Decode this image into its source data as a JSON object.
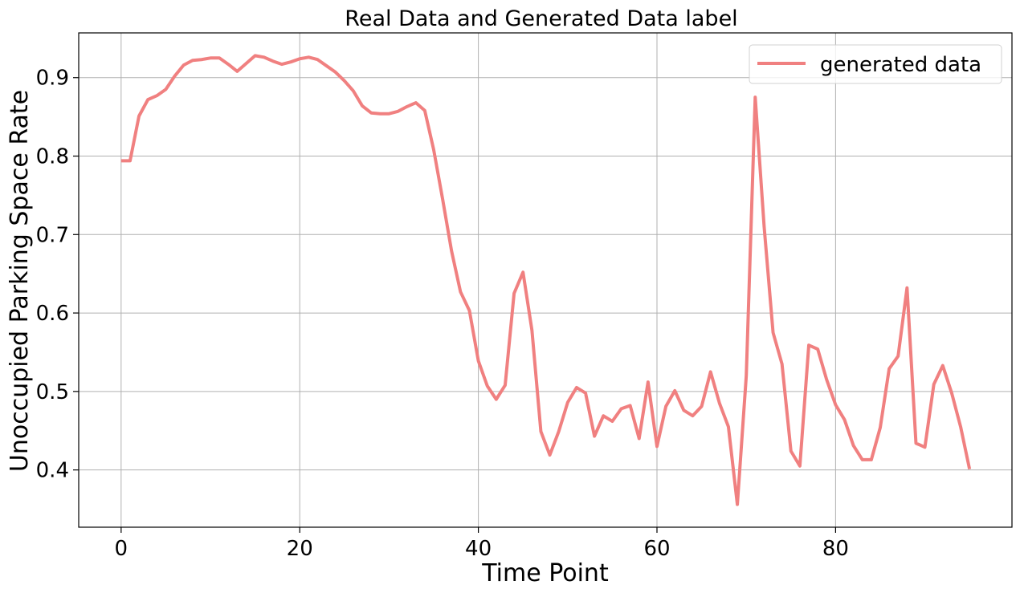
{
  "chart_data": {
    "type": "line",
    "title": "Real Data and Generated Data label",
    "xlabel": "Time Point",
    "ylabel": "Unoccupied Parking Space Rate",
    "xlim": [
      -4.75,
      99.75
    ],
    "ylim": [
      0.327,
      0.957
    ],
    "xticks": [
      0,
      20,
      40,
      60,
      80
    ],
    "yticks": [
      0.4,
      0.5,
      0.6,
      0.7,
      0.8,
      0.9
    ],
    "xtick_labels": [
      "0",
      "20",
      "40",
      "60",
      "80"
    ],
    "ytick_labels": [
      "0.4",
      "0.5",
      "0.6",
      "0.7",
      "0.8",
      "0.9"
    ],
    "grid": true,
    "legend": "upper-right",
    "series": [
      {
        "name": "generated data",
        "color": "#f08080",
        "x": [
          0,
          1,
          2,
          3,
          4,
          5,
          6,
          7,
          8,
          9,
          10,
          11,
          12,
          13,
          14,
          15,
          16,
          17,
          18,
          19,
          20,
          21,
          22,
          23,
          24,
          25,
          26,
          27,
          28,
          29,
          30,
          31,
          32,
          33,
          34,
          35,
          36,
          37,
          38,
          39,
          40,
          41,
          42,
          43,
          44,
          45,
          46,
          47,
          48,
          49,
          50,
          51,
          52,
          53,
          54,
          55,
          56,
          57,
          58,
          59,
          60,
          61,
          62,
          63,
          64,
          65,
          66,
          67,
          68,
          69,
          70,
          71,
          72,
          73,
          74,
          75,
          76,
          77,
          78,
          79,
          80,
          81,
          82,
          83,
          84,
          85,
          86,
          87,
          88,
          89,
          90,
          91,
          92,
          93,
          94,
          95
        ],
        "y": [
          0.794,
          0.794,
          0.851,
          0.872,
          0.877,
          0.885,
          0.902,
          0.916,
          0.922,
          0.923,
          0.925,
          0.925,
          0.917,
          0.908,
          0.918,
          0.928,
          0.926,
          0.921,
          0.917,
          0.92,
          0.924,
          0.926,
          0.923,
          0.915,
          0.907,
          0.896,
          0.883,
          0.864,
          0.855,
          0.854,
          0.854,
          0.857,
          0.863,
          0.868,
          0.858,
          0.808,
          0.745,
          0.679,
          0.627,
          0.603,
          0.539,
          0.507,
          0.49,
          0.508,
          0.625,
          0.652,
          0.578,
          0.449,
          0.419,
          0.449,
          0.486,
          0.505,
          0.498,
          0.443,
          0.469,
          0.462,
          0.478,
          0.482,
          0.44,
          0.512,
          0.43,
          0.481,
          0.501,
          0.476,
          0.469,
          0.481,
          0.525,
          0.485,
          0.455,
          0.356,
          0.52,
          0.875,
          0.71,
          0.575,
          0.535,
          0.424,
          0.405,
          0.559,
          0.554,
          0.515,
          0.483,
          0.464,
          0.431,
          0.413,
          0.413,
          0.454,
          0.529,
          0.545,
          0.632,
          0.434,
          0.429,
          0.509,
          0.533,
          0.498,
          0.455,
          0.401
        ]
      }
    ]
  }
}
